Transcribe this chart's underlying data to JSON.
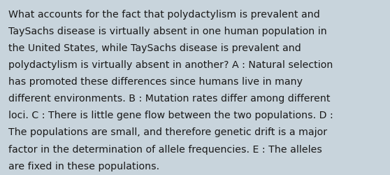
{
  "lines": [
    "What accounts for the fact that polydactylism is prevalent and",
    "TaySachs disease is virtually absent in one human population in",
    "the United States, while TaySachs disease is prevalent and",
    "polydactylism is virtually absent in another? A : Natural selection",
    "has promoted these differences since humans live in many",
    "different environments. B : Mutation rates differ among different",
    "loci. C : There is little gene flow between the two populations. D :",
    "The populations are small, and therefore genetic drift is a major",
    "factor in the determination of allele frequencies. E : The alleles",
    "are fixed in these populations."
  ],
  "background_color": "#c8d4dc",
  "text_color": "#1a1a1a",
  "font_size": 10.2,
  "font_family": "DejaVu Sans"
}
